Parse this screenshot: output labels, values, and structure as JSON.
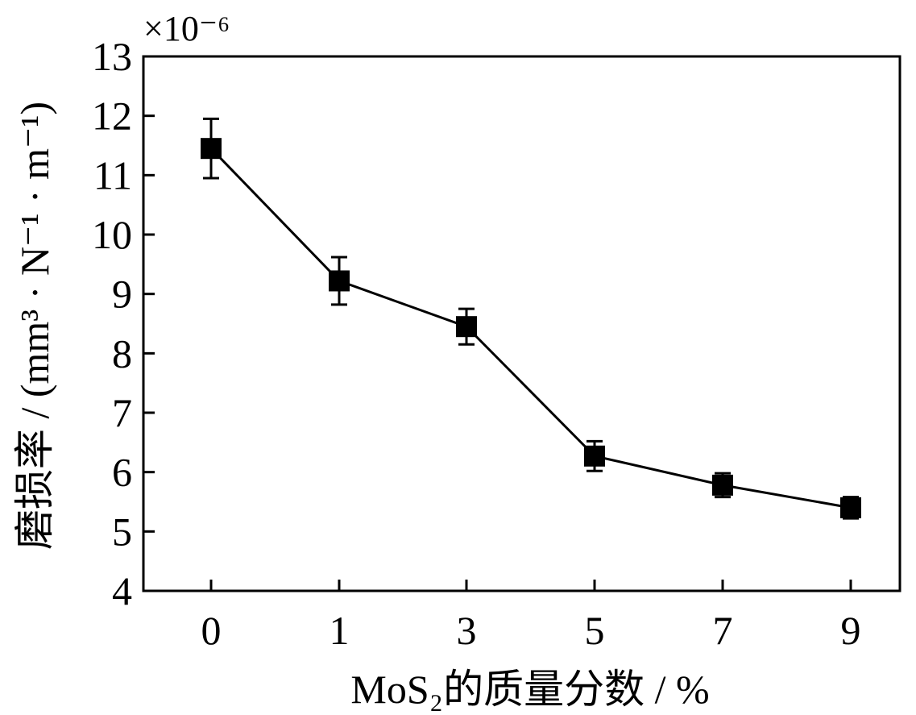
{
  "chart_data": {
    "type": "line",
    "title": "",
    "xlabel": "MoS₂的质量分数 / %",
    "ylabel": "磨损率 / (mm³ · N⁻¹ · m⁻¹)",
    "y_multiplier": "×10⁻⁶",
    "categories": [
      "0",
      "1",
      "3",
      "5",
      "7",
      "9"
    ],
    "ylim": [
      4,
      13
    ],
    "yticks": [
      "4",
      "5",
      "6",
      "7",
      "8",
      "9",
      "10",
      "11",
      "12",
      "13"
    ],
    "grid": false,
    "series": [
      {
        "values": [
          11.45,
          9.22,
          8.45,
          6.27,
          5.78,
          5.4
        ],
        "errors": [
          0.5,
          0.4,
          0.3,
          0.25,
          0.2,
          0.18
        ],
        "marker": "square",
        "color": "#000000"
      }
    ]
  }
}
